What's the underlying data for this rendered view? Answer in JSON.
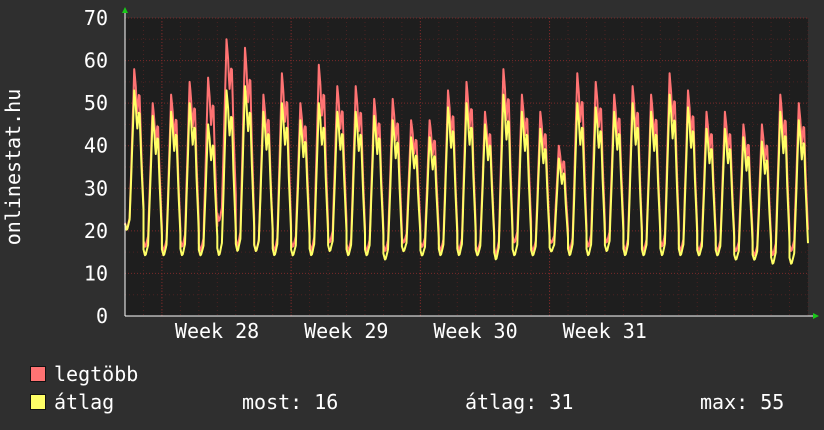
{
  "chart_data": {
    "type": "line",
    "ylabel": "onlinestat.hu",
    "ylim": [
      0,
      70
    ],
    "yticks": [
      0,
      10,
      20,
      30,
      40,
      50,
      60,
      70
    ],
    "xticks": [
      "Week 28",
      "Week 29",
      "Week 30",
      "Week 31"
    ],
    "grid": true,
    "colors": {
      "background": "#2f2f2f",
      "plot": "#1e1e1e",
      "grid": "#7a2a2a",
      "axis": "#ffffff",
      "arrow": "#19c819"
    },
    "series": [
      {
        "name": "legtöbb",
        "color": "#ff7373",
        "days": [
          {
            "min": 20,
            "max": 58
          },
          {
            "min": 16,
            "max": 50
          },
          {
            "min": 15,
            "max": 52
          },
          {
            "min": 16,
            "max": 55
          },
          {
            "min": 15,
            "max": 56
          },
          {
            "min": 22,
            "max": 65
          },
          {
            "min": 16,
            "max": 63
          },
          {
            "min": 15,
            "max": 52
          },
          {
            "min": 15,
            "max": 57
          },
          {
            "min": 16,
            "max": 50
          },
          {
            "min": 15,
            "max": 59
          },
          {
            "min": 17,
            "max": 54
          },
          {
            "min": 15,
            "max": 54
          },
          {
            "min": 15,
            "max": 51
          },
          {
            "min": 15,
            "max": 51
          },
          {
            "min": 17,
            "max": 46
          },
          {
            "min": 16,
            "max": 46
          },
          {
            "min": 15,
            "max": 53
          },
          {
            "min": 15,
            "max": 55
          },
          {
            "min": 15,
            "max": 48
          },
          {
            "min": 14,
            "max": 58
          },
          {
            "min": 17,
            "max": 52
          },
          {
            "min": 15,
            "max": 48
          },
          {
            "min": 17,
            "max": 40
          },
          {
            "min": 15,
            "max": 57
          },
          {
            "min": 16,
            "max": 55
          },
          {
            "min": 17,
            "max": 52
          },
          {
            "min": 15,
            "max": 54
          },
          {
            "min": 15,
            "max": 52
          },
          {
            "min": 16,
            "max": 57
          },
          {
            "min": 15,
            "max": 53
          },
          {
            "min": 15,
            "max": 48
          },
          {
            "min": 15,
            "max": 48
          },
          {
            "min": 15,
            "max": 45
          },
          {
            "min": 14,
            "max": 45
          },
          {
            "min": 14,
            "max": 52
          },
          {
            "min": 15,
            "max": 50
          }
        ]
      },
      {
        "name": "átlag",
        "color": "#ffff66",
        "days": [
          {
            "min": 20,
            "max": 53
          },
          {
            "min": 14,
            "max": 47
          },
          {
            "min": 14,
            "max": 48
          },
          {
            "min": 14,
            "max": 50
          },
          {
            "min": 14,
            "max": 45
          },
          {
            "min": 14,
            "max": 53
          },
          {
            "min": 15,
            "max": 54
          },
          {
            "min": 15,
            "max": 48
          },
          {
            "min": 14,
            "max": 50
          },
          {
            "min": 14,
            "max": 46
          },
          {
            "min": 14,
            "max": 50
          },
          {
            "min": 15,
            "max": 48
          },
          {
            "min": 14,
            "max": 48
          },
          {
            "min": 14,
            "max": 47
          },
          {
            "min": 13,
            "max": 46
          },
          {
            "min": 15,
            "max": 42
          },
          {
            "min": 14,
            "max": 42
          },
          {
            "min": 14,
            "max": 49
          },
          {
            "min": 14,
            "max": 50
          },
          {
            "min": 14,
            "max": 45
          },
          {
            "min": 13,
            "max": 52
          },
          {
            "min": 14,
            "max": 48
          },
          {
            "min": 14,
            "max": 44
          },
          {
            "min": 15,
            "max": 37
          },
          {
            "min": 14,
            "max": 50
          },
          {
            "min": 14,
            "max": 49
          },
          {
            "min": 15,
            "max": 48
          },
          {
            "min": 14,
            "max": 50
          },
          {
            "min": 14,
            "max": 48
          },
          {
            "min": 14,
            "max": 52
          },
          {
            "min": 14,
            "max": 49
          },
          {
            "min": 14,
            "max": 44
          },
          {
            "min": 14,
            "max": 44
          },
          {
            "min": 13,
            "max": 42
          },
          {
            "min": 13,
            "max": 41
          },
          {
            "min": 12,
            "max": 48
          },
          {
            "min": 12,
            "max": 46
          }
        ]
      }
    ]
  },
  "legend": {
    "max_label": "legtöbb",
    "avg_label": "átlag",
    "stats": {
      "now": "most: 16",
      "avg": "átlag: 31",
      "max": "max: 55"
    }
  }
}
